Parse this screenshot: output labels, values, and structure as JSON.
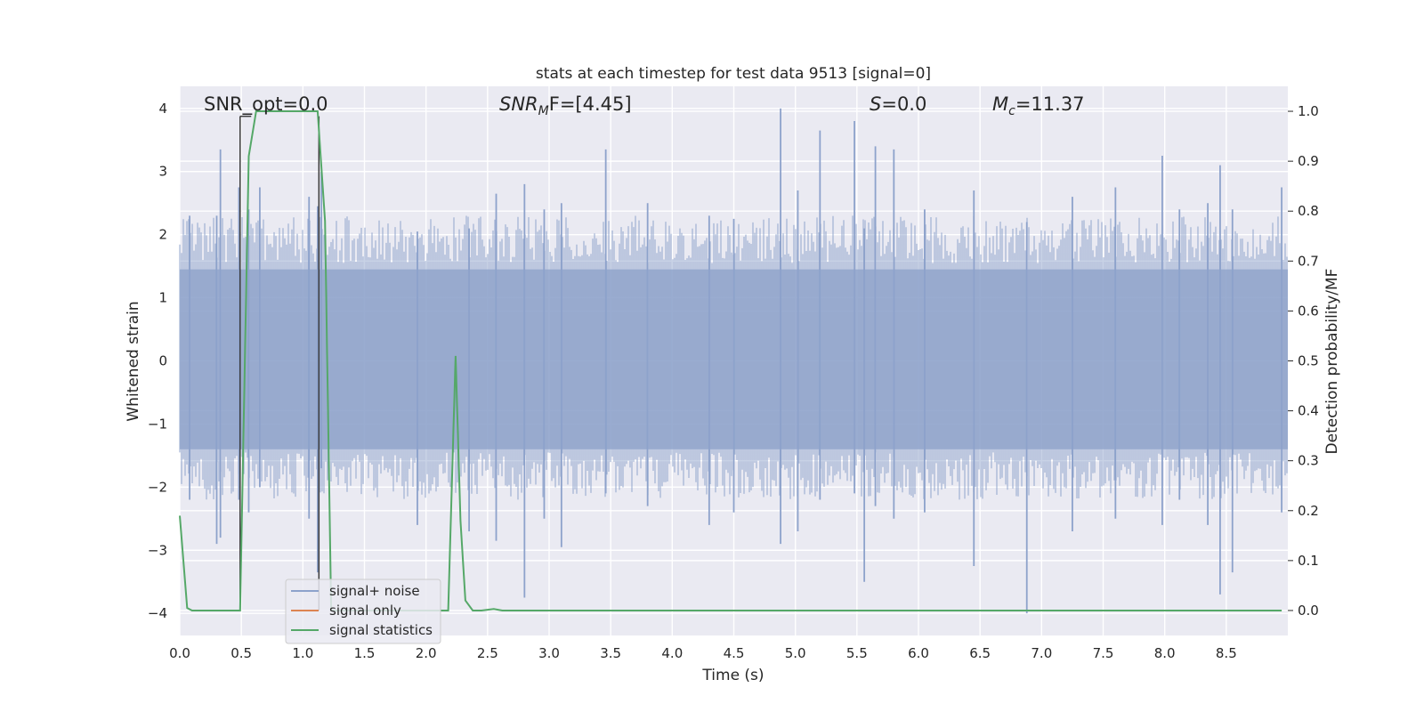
{
  "chart_data": {
    "type": "line",
    "title": "stats at each timestep for test data 9513 [signal=0]",
    "xlabel": "Time (s)",
    "ylabel_left": "Whitened strain",
    "ylabel_right": "Detection probability/MF",
    "xlim": [
      0.0,
      9.0
    ],
    "ylim_left": [
      -4.35,
      4.35
    ],
    "ylim_right": [
      -0.05,
      1.05
    ],
    "x_ticks": [
      "0.0",
      "0.5",
      "1.0",
      "1.5",
      "2.0",
      "2.5",
      "3.0",
      "3.5",
      "4.0",
      "4.5",
      "5.0",
      "5.5",
      "6.0",
      "6.5",
      "7.0",
      "7.5",
      "8.0",
      "8.5"
    ],
    "y_ticks_left": [
      "−4",
      "−3",
      "−2",
      "−1",
      "0",
      "1",
      "2",
      "3",
      "4"
    ],
    "y_ticks_right": [
      "0.0",
      "0.1",
      "0.2",
      "0.3",
      "0.4",
      "0.5",
      "0.6",
      "0.7",
      "0.8",
      "0.9",
      "1.0"
    ],
    "grid": true,
    "legend_position": "lower-left",
    "annotations": {
      "snr_opt": "SNR_opt=0.0",
      "snr_mf_base": "SNR",
      "snr_mf_sub": "M",
      "snr_mf_rest": "F=[4.45]",
      "s_label": "S",
      "s_value": "=0.0",
      "mc_base": "M",
      "mc_sub": "c",
      "mc_value": "=11.37"
    },
    "series": [
      {
        "name": "signal+ noise",
        "color": "#8da2cb",
        "axis": "left",
        "spikes": [
          [
            0.08,
            2.3,
            -2.2
          ],
          [
            0.3,
            2.3,
            -2.9
          ],
          [
            0.33,
            3.35,
            -2.8
          ],
          [
            0.48,
            2.75,
            -2.2
          ],
          [
            0.56,
            2.4,
            -2.4
          ],
          [
            0.65,
            2.75,
            -2.0
          ],
          [
            1.05,
            2.6,
            -2.5
          ],
          [
            1.12,
            2.45,
            -3.35
          ],
          [
            1.15,
            3.0,
            -1.7
          ],
          [
            1.93,
            2.05,
            -2.6
          ],
          [
            2.35,
            2.1,
            -2.7
          ],
          [
            2.57,
            2.65,
            -2.85
          ],
          [
            2.8,
            2.8,
            -3.75
          ],
          [
            2.96,
            2.4,
            -2.5
          ],
          [
            3.1,
            2.5,
            -2.95
          ],
          [
            3.46,
            3.35,
            -2.1
          ],
          [
            3.8,
            2.5,
            -2.3
          ],
          [
            4.3,
            2.3,
            -2.6
          ],
          [
            4.5,
            2.25,
            -2.4
          ],
          [
            4.88,
            4.0,
            -2.9
          ],
          [
            5.02,
            2.7,
            -2.7
          ],
          [
            5.2,
            3.65,
            -2.2
          ],
          [
            5.48,
            3.8,
            -2.1
          ],
          [
            5.56,
            2.1,
            -3.5
          ],
          [
            5.65,
            3.4,
            -2.3
          ],
          [
            5.8,
            3.35,
            -2.5
          ],
          [
            6.05,
            2.4,
            -2.4
          ],
          [
            6.45,
            2.7,
            -3.25
          ],
          [
            6.88,
            2.2,
            -4.0
          ],
          [
            7.25,
            2.6,
            -2.7
          ],
          [
            7.6,
            2.75,
            -2.5
          ],
          [
            7.98,
            3.25,
            -2.6
          ],
          [
            8.12,
            2.4,
            -2.2
          ],
          [
            8.35,
            2.5,
            -2.6
          ],
          [
            8.45,
            3.1,
            -3.7
          ],
          [
            8.55,
            2.4,
            -3.35
          ],
          [
            8.95,
            2.75,
            -2.4
          ]
        ]
      },
      {
        "name": "signal only",
        "color": "#dd8452",
        "axis": "left",
        "x": [],
        "y": []
      },
      {
        "name": "signal statistics",
        "color": "#55a868",
        "axis": "right",
        "x": [
          0.0,
          0.06,
          0.1,
          0.2,
          0.3,
          0.4,
          0.49,
          0.56,
          0.62,
          0.7,
          0.8,
          0.9,
          1.0,
          1.08,
          1.12,
          1.18,
          1.23,
          1.3,
          1.4,
          1.5,
          1.6,
          1.7,
          1.8,
          1.9,
          2.0,
          2.1,
          2.18,
          2.24,
          2.28,
          2.32,
          2.38,
          2.45,
          2.55,
          2.62,
          3.0,
          4.0,
          5.0,
          6.0,
          7.0,
          8.0,
          8.95
        ],
        "y": [
          0.19,
          0.005,
          0.0,
          0.0,
          0.0,
          0.0,
          0.0,
          0.91,
          1.0,
          1.0,
          1.0,
          1.0,
          1.0,
          1.0,
          1.0,
          0.78,
          0.0,
          0.0,
          0.0,
          0.0,
          0.0,
          0.0,
          0.0,
          0.0,
          0.0,
          0.0,
          0.0,
          0.51,
          0.18,
          0.02,
          0.0,
          0.0,
          0.003,
          0.0,
          0.0,
          0.0,
          0.0,
          0.0,
          0.0,
          0.0,
          0.0
        ]
      }
    ],
    "marker_lines": {
      "color": "#3a3a3a",
      "x": [
        0.49,
        1.13
      ],
      "y_top": 0.99,
      "bar_x": [
        0.49,
        0.58
      ]
    }
  }
}
